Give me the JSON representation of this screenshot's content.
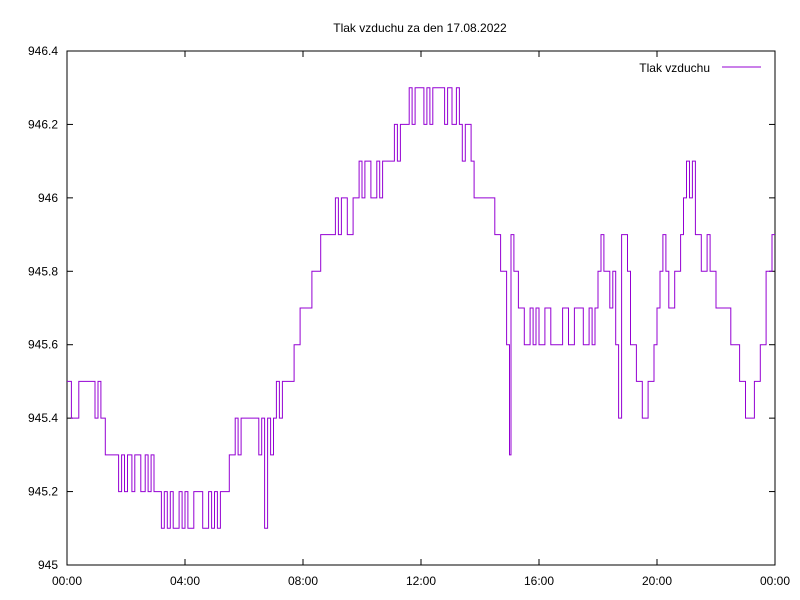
{
  "chart_data": {
    "type": "line",
    "title": "Tlak vzduchu za den 17.08.2022",
    "xlabel": "",
    "ylabel": "",
    "x_unit": "hours",
    "xlim": [
      0,
      24
    ],
    "ylim": [
      945,
      946.4
    ],
    "x_ticks": [
      {
        "value": 0,
        "label": "00:00"
      },
      {
        "value": 4,
        "label": "04:00"
      },
      {
        "value": 8,
        "label": "08:00"
      },
      {
        "value": 12,
        "label": "12:00"
      },
      {
        "value": 16,
        "label": "16:00"
      },
      {
        "value": 20,
        "label": "20:00"
      },
      {
        "value": 24,
        "label": "00:00"
      }
    ],
    "y_ticks": [
      {
        "value": 945,
        "label": "945"
      },
      {
        "value": 945.2,
        "label": "945.2"
      },
      {
        "value": 945.4,
        "label": "945.4"
      },
      {
        "value": 945.6,
        "label": "945.6"
      },
      {
        "value": 945.8,
        "label": "945.8"
      },
      {
        "value": 946,
        "label": "946"
      },
      {
        "value": 946.2,
        "label": "946.2"
      },
      {
        "value": 946.4,
        "label": "946.4"
      }
    ],
    "grid": false,
    "legend_position": "top-right",
    "series": [
      {
        "name": "Tlak vzduchu",
        "color": "#9400d3",
        "points": [
          [
            0.0,
            945.5
          ],
          [
            0.15,
            945.4
          ],
          [
            0.4,
            945.5
          ],
          [
            0.95,
            945.4
          ],
          [
            1.05,
            945.5
          ],
          [
            1.15,
            945.4
          ],
          [
            1.3,
            945.3
          ],
          [
            1.75,
            945.2
          ],
          [
            1.85,
            945.3
          ],
          [
            1.95,
            945.2
          ],
          [
            2.05,
            945.3
          ],
          [
            2.2,
            945.2
          ],
          [
            2.3,
            945.3
          ],
          [
            2.5,
            945.2
          ],
          [
            2.65,
            945.3
          ],
          [
            2.75,
            945.2
          ],
          [
            2.85,
            945.3
          ],
          [
            2.95,
            945.2
          ],
          [
            3.2,
            945.1
          ],
          [
            3.3,
            945.2
          ],
          [
            3.4,
            945.1
          ],
          [
            3.5,
            945.2
          ],
          [
            3.6,
            945.1
          ],
          [
            3.8,
            945.2
          ],
          [
            3.9,
            945.1
          ],
          [
            4.0,
            945.2
          ],
          [
            4.1,
            945.1
          ],
          [
            4.3,
            945.2
          ],
          [
            4.6,
            945.1
          ],
          [
            4.8,
            945.2
          ],
          [
            4.9,
            945.1
          ],
          [
            5.0,
            945.2
          ],
          [
            5.1,
            945.1
          ],
          [
            5.2,
            945.2
          ],
          [
            5.5,
            945.3
          ],
          [
            5.7,
            945.4
          ],
          [
            5.8,
            945.3
          ],
          [
            5.9,
            945.4
          ],
          [
            6.5,
            945.3
          ],
          [
            6.6,
            945.4
          ],
          [
            6.7,
            945.1
          ],
          [
            6.8,
            945.4
          ],
          [
            6.9,
            945.3
          ],
          [
            7.0,
            945.4
          ],
          [
            7.1,
            945.5
          ],
          [
            7.2,
            945.4
          ],
          [
            7.3,
            945.5
          ],
          [
            7.7,
            945.6
          ],
          [
            7.9,
            945.7
          ],
          [
            8.3,
            945.8
          ],
          [
            8.6,
            945.9
          ],
          [
            9.1,
            946.0
          ],
          [
            9.2,
            945.9
          ],
          [
            9.3,
            946.0
          ],
          [
            9.5,
            945.9
          ],
          [
            9.7,
            946.0
          ],
          [
            9.9,
            946.1
          ],
          [
            10.0,
            946.0
          ],
          [
            10.1,
            946.1
          ],
          [
            10.3,
            946.0
          ],
          [
            10.5,
            946.1
          ],
          [
            10.6,
            946.0
          ],
          [
            10.7,
            946.1
          ],
          [
            10.9,
            946.1
          ],
          [
            11.1,
            946.2
          ],
          [
            11.2,
            946.1
          ],
          [
            11.3,
            946.2
          ],
          [
            11.6,
            946.3
          ],
          [
            11.7,
            946.2
          ],
          [
            11.8,
            946.3
          ],
          [
            12.1,
            946.2
          ],
          [
            12.2,
            946.3
          ],
          [
            12.3,
            946.2
          ],
          [
            12.4,
            946.3
          ],
          [
            12.8,
            946.2
          ],
          [
            12.9,
            946.3
          ],
          [
            13.05,
            946.2
          ],
          [
            13.2,
            946.3
          ],
          [
            13.3,
            946.2
          ],
          [
            13.4,
            946.1
          ],
          [
            13.5,
            946.2
          ],
          [
            13.7,
            946.1
          ],
          [
            13.8,
            946.0
          ],
          [
            14.2,
            946.0
          ],
          [
            14.5,
            945.9
          ],
          [
            14.7,
            945.8
          ],
          [
            14.9,
            945.6
          ],
          [
            15.0,
            945.3
          ],
          [
            15.05,
            945.9
          ],
          [
            15.15,
            945.8
          ],
          [
            15.3,
            945.7
          ],
          [
            15.5,
            945.6
          ],
          [
            15.7,
            945.7
          ],
          [
            15.8,
            945.6
          ],
          [
            15.9,
            945.7
          ],
          [
            16.0,
            945.6
          ],
          [
            16.2,
            945.7
          ],
          [
            16.4,
            945.6
          ],
          [
            16.6,
            945.6
          ],
          [
            16.8,
            945.7
          ],
          [
            17.0,
            945.6
          ],
          [
            17.2,
            945.7
          ],
          [
            17.5,
            945.6
          ],
          [
            17.7,
            945.7
          ],
          [
            17.8,
            945.6
          ],
          [
            17.9,
            945.7
          ],
          [
            18.0,
            945.8
          ],
          [
            18.1,
            945.9
          ],
          [
            18.2,
            945.8
          ],
          [
            18.4,
            945.7
          ],
          [
            18.5,
            945.8
          ],
          [
            18.6,
            945.6
          ],
          [
            18.7,
            945.4
          ],
          [
            18.8,
            945.9
          ],
          [
            19.0,
            945.8
          ],
          [
            19.1,
            945.6
          ],
          [
            19.3,
            945.5
          ],
          [
            19.5,
            945.4
          ],
          [
            19.7,
            945.5
          ],
          [
            19.9,
            945.6
          ],
          [
            20.0,
            945.7
          ],
          [
            20.1,
            945.8
          ],
          [
            20.2,
            945.9
          ],
          [
            20.3,
            945.8
          ],
          [
            20.4,
            945.7
          ],
          [
            20.6,
            945.8
          ],
          [
            20.8,
            945.9
          ],
          [
            20.9,
            946.0
          ],
          [
            21.0,
            946.1
          ],
          [
            21.1,
            946.0
          ],
          [
            21.2,
            946.1
          ],
          [
            21.3,
            945.9
          ],
          [
            21.5,
            945.8
          ],
          [
            21.7,
            945.9
          ],
          [
            21.8,
            945.8
          ],
          [
            22.0,
            945.7
          ],
          [
            22.2,
            945.7
          ],
          [
            22.5,
            945.6
          ],
          [
            22.8,
            945.5
          ],
          [
            23.0,
            945.4
          ],
          [
            23.3,
            945.5
          ],
          [
            23.5,
            945.6
          ],
          [
            23.7,
            945.8
          ],
          [
            23.9,
            945.9
          ],
          [
            24.0,
            945.9
          ]
        ]
      }
    ]
  }
}
